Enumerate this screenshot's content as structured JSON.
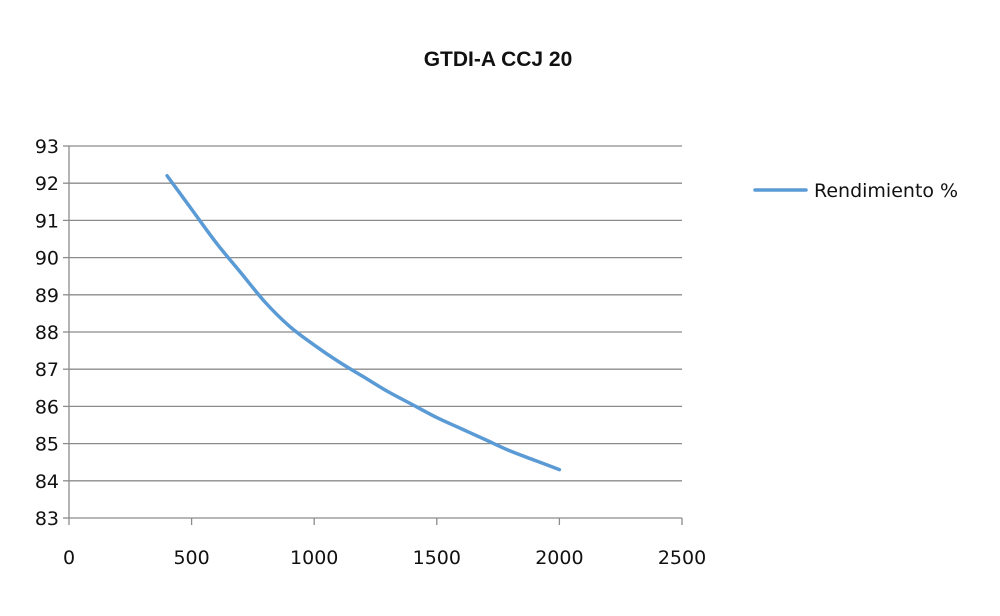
{
  "chart_data": {
    "type": "line",
    "title": "GTDI-A CCJ 20",
    "xlabel": "",
    "ylabel": "",
    "xlim": [
      0,
      2500
    ],
    "ylim": [
      83,
      93
    ],
    "x_ticks": [
      "0",
      "500",
      "1000",
      "1500",
      "2000",
      "2500"
    ],
    "y_ticks": [
      "83",
      "84",
      "85",
      "86",
      "87",
      "88",
      "89",
      "90",
      "91",
      "92",
      "93"
    ],
    "grid": "horizontal",
    "legend_position": "right",
    "series": [
      {
        "name": "Rendimiento %",
        "color": "#5b9bd5",
        "x": [
          400,
          500,
          600,
          700,
          800,
          900,
          1000,
          1100,
          1200,
          1300,
          1400,
          1500,
          1600,
          1700,
          1800,
          1900,
          2000
        ],
        "y": [
          92.2,
          91.3,
          90.4,
          89.6,
          88.8,
          88.15,
          87.65,
          87.2,
          86.8,
          86.4,
          86.05,
          85.7,
          85.4,
          85.1,
          84.8,
          84.55,
          84.3
        ]
      }
    ]
  }
}
